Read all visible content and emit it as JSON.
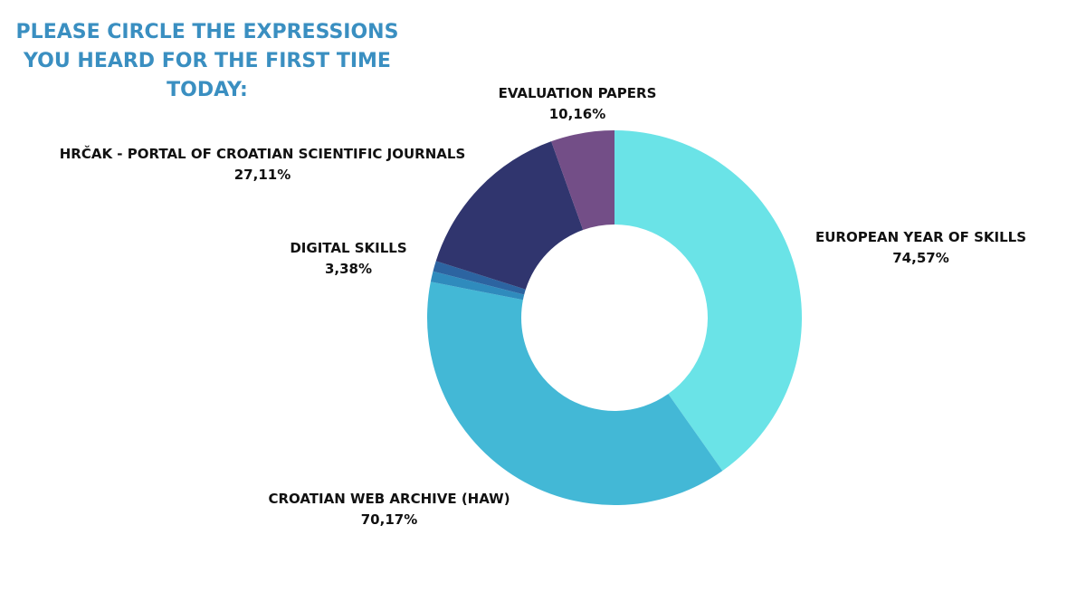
{
  "title_lines": [
    "PLEASE CIRCLE THE EXPRESSIONS",
    "YOU HEARD FOR THE FIRST TIME",
    "TODAY:"
  ],
  "chart_data": {
    "type": "pie",
    "style": "donut",
    "legend": "none",
    "slices": [
      {
        "label": "EUROPEAN YEAR OF SKILLS",
        "value_label": "74,57%",
        "value": 74.57,
        "color": "#6ae3e7"
      },
      {
        "label": "CROATIAN WEB ARCHIVE (HAW)",
        "value_label": "70,17%",
        "value": 70.17,
        "color": "#43b8d6"
      },
      {
        "label": "DIGITAL SKILLS",
        "value_label": "3,38%",
        "value": 3.38,
        "color": "#2f8bbd",
        "color_secondary": "#2c64a1"
      },
      {
        "label": "HRČAK - PORTAL OF CROATIAN SCIENTIFIC JOURNALS",
        "value_label": "27,11%",
        "value": 27.11,
        "color": "#30356e"
      },
      {
        "label": "EVALUATION PAPERS",
        "value_label": "10,16%",
        "value": 10.16,
        "color": "#734e87"
      }
    ]
  }
}
